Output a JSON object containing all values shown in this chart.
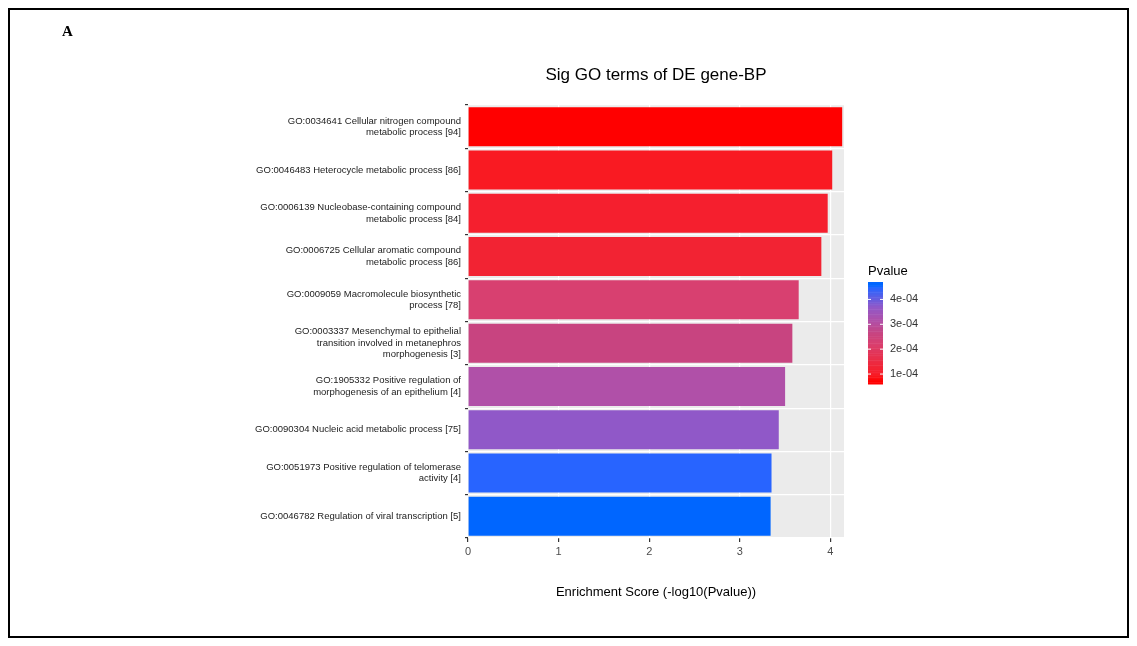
{
  "chart_data": {
    "type": "bar",
    "orientation": "horizontal",
    "title": "Sig GO terms of DE gene-BP",
    "xlabel": "Enrichment Score (-log10(Pvalue))",
    "clabel": "Pvalue",
    "categories": [
      "GO:0034641 Cellular nitrogen compound\nmetabolic process [94]",
      "GO:0046483 Heterocycle metabolic process [86]",
      "GO:0006139 Nucleobase-containing compound\nmetabolic process [84]",
      "GO:0006725 Cellular aromatic compound\nmetabolic process [86]",
      "GO:0009059 Macromolecule biosynthetic\nprocess [78]",
      "GO:0003337 Mesenchymal to epithelial\ntransition involved in metanephros\nmorphogenesis [3]",
      "GO:1905332 Positive regulation of\nmorphogenesis of an epithelium [4]",
      "GO:0090304 Nucleic acid metabolic process [75]",
      "GO:0051973 Positive regulation of telomerase\nactivity [4]",
      "GO:0046782 Regulation of viral transcription [5]"
    ],
    "values": [
      4.13,
      4.02,
      3.97,
      3.9,
      3.65,
      3.58,
      3.5,
      3.43,
      3.35,
      3.34
    ],
    "colors": [
      "#ff0000",
      "#f91a22",
      "#f51f2e",
      "#f22333",
      "#d84070",
      "#c84480",
      "#b050a8",
      "#9058c8",
      "#2864ff",
      "#0066ff"
    ],
    "xlim": [
      0,
      4.15
    ],
    "xticks": [
      0,
      1,
      2,
      3,
      4
    ],
    "grid": true,
    "clim": [
      6e-05,
      0.00047
    ],
    "cticks": [
      {
        "value": 0.0001,
        "label": "1e-04"
      },
      {
        "value": 0.0002,
        "label": "2e-04"
      },
      {
        "value": 0.0003,
        "label": "3e-04"
      },
      {
        "value": 0.0004,
        "label": "4e-04"
      }
    ],
    "annotations": [
      "A"
    ]
  }
}
